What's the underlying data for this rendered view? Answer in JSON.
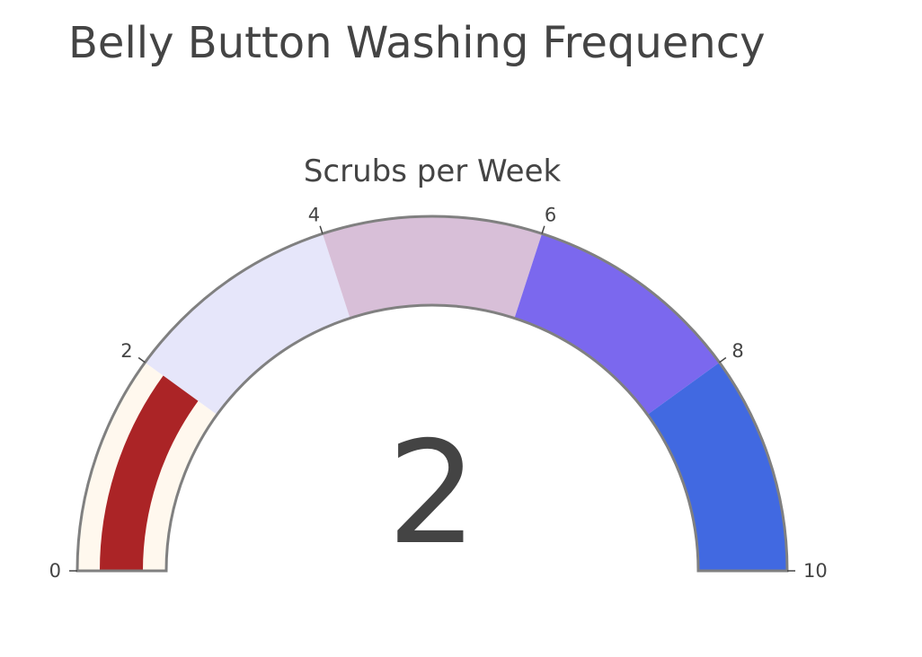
{
  "chart_data": {
    "type": "gauge",
    "title": "Belly Button Washing Frequency",
    "subtitle": "Scrubs per Week",
    "value": 2,
    "value_label": "2",
    "range": [
      0,
      10
    ],
    "ticks": [
      {
        "value": 0,
        "label": "0"
      },
      {
        "value": 2,
        "label": "2"
      },
      {
        "value": 4,
        "label": "4"
      },
      {
        "value": 6,
        "label": "6"
      },
      {
        "value": 8,
        "label": "8"
      },
      {
        "value": 10,
        "label": "10"
      }
    ],
    "steps": [
      {
        "range": [
          0,
          2
        ],
        "color": "#fff8ee"
      },
      {
        "range": [
          2,
          4
        ],
        "color": "#e6e6fa"
      },
      {
        "range": [
          4,
          6
        ],
        "color": "#d8bfd8"
      },
      {
        "range": [
          6,
          8
        ],
        "color": "#7b68ee"
      },
      {
        "range": [
          8,
          10
        ],
        "color": "#4169e1"
      }
    ],
    "bar_color": "#ab2426",
    "border_color": "#808080"
  }
}
